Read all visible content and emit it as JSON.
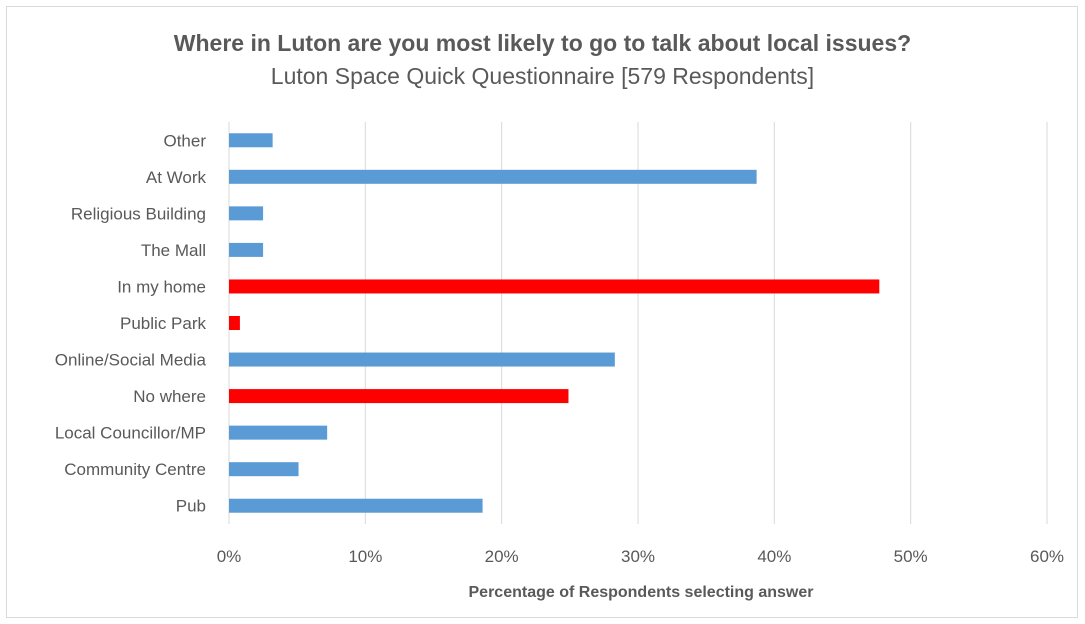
{
  "chart_data": {
    "type": "bar",
    "orientation": "horizontal",
    "title": "Where in Luton are you most likely to go to talk about local issues?",
    "subtitle": "Luton Space Quick Questionnaire  [579 Respondents]",
    "xlabel": "Percentage of Respondents selecting answer",
    "ylabel": "",
    "xlim": [
      0,
      60
    ],
    "x_ticks": [
      0,
      10,
      20,
      30,
      40,
      50,
      60
    ],
    "x_tick_labels": [
      "0%",
      "10%",
      "20%",
      "30%",
      "40%",
      "50%",
      "60%"
    ],
    "grid": "vertical",
    "legend": "none",
    "categories": [
      "Other",
      "At Work",
      "Religious Building",
      "The Mall",
      "In my home",
      "Public Park",
      "Online/Social  Media",
      "No where",
      "Local Councillor/MP",
      "Community Centre",
      "Pub"
    ],
    "values": [
      3.2,
      38.7,
      2.5,
      2.5,
      47.7,
      0.8,
      28.3,
      24.9,
      7.2,
      5.1,
      18.6
    ],
    "highlighted": [
      false,
      false,
      false,
      false,
      true,
      true,
      false,
      true,
      false,
      false,
      false
    ],
    "colors": {
      "default": "#5b9bd5",
      "highlight": "#ff0000",
      "grid": "#d9d9d9",
      "text": "#595959"
    }
  }
}
